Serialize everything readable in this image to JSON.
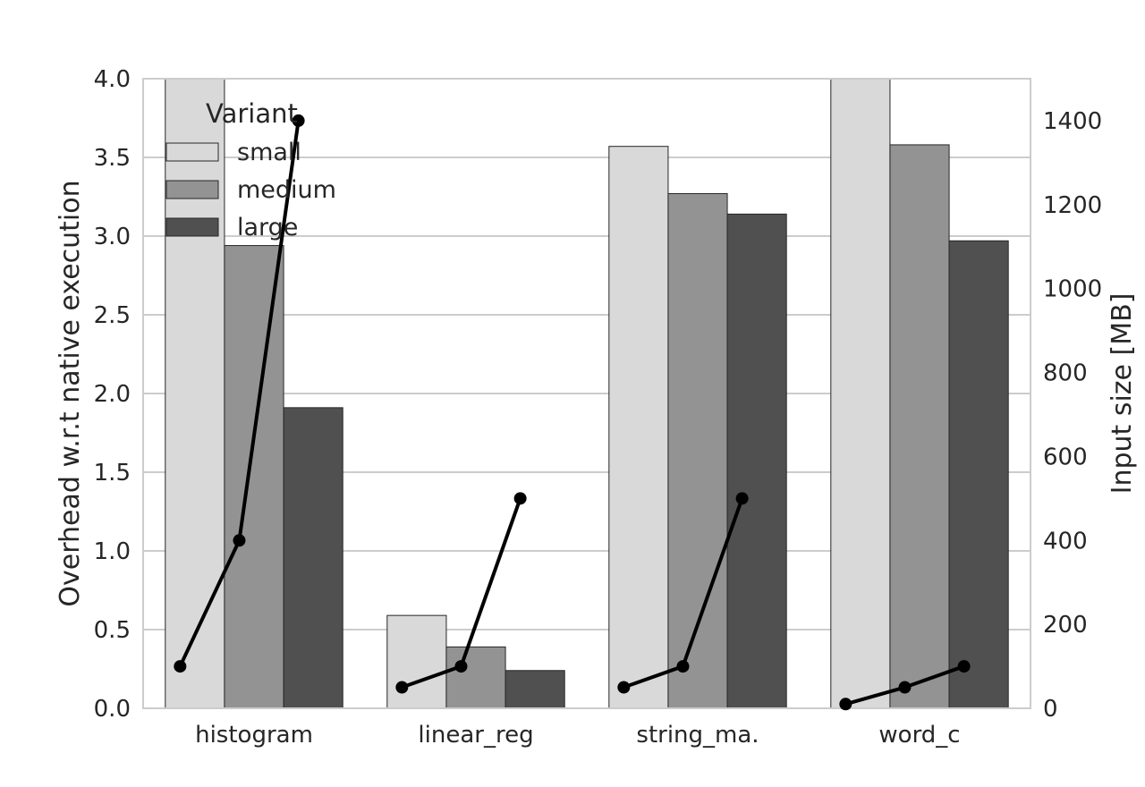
{
  "chart_data": {
    "type": "bar",
    "categories": [
      "histogram",
      "linear_reg",
      "string_ma.",
      "word_c"
    ],
    "series": [
      {
        "name": "small",
        "values": [
          4.0,
          0.59,
          3.57,
          4.0
        ],
        "color": "#d9d9d9"
      },
      {
        "name": "medium",
        "values": [
          2.94,
          0.39,
          3.27,
          3.58
        ],
        "color": "#939393"
      },
      {
        "name": "large",
        "values": [
          1.91,
          0.24,
          3.14,
          2.97
        ],
        "color": "#505050"
      }
    ],
    "ylabel": "Overhead w.r.t native execution",
    "ylim": [
      0,
      4.0
    ],
    "yticks": [
      "0.0",
      "0.5",
      "1.0",
      "1.5",
      "2.0",
      "2.5",
      "3.0",
      "3.5",
      "4.0"
    ],
    "y2label": "Input size [MB]",
    "y2lim": [
      0,
      1500
    ],
    "y2ticks": [
      "0",
      "200",
      "400",
      "600",
      "800",
      "1000",
      "1200",
      "1400"
    ],
    "line_series": {
      "axis": "right",
      "color": "#000000",
      "values": [
        [
          100,
          400,
          1400
        ],
        [
          50,
          100,
          500
        ],
        [
          50,
          100,
          500
        ],
        [
          10,
          50,
          100
        ]
      ]
    },
    "legend": {
      "title": "Variant",
      "position": "top-left",
      "entries": [
        "small",
        "medium",
        "large"
      ]
    },
    "grid": true
  }
}
